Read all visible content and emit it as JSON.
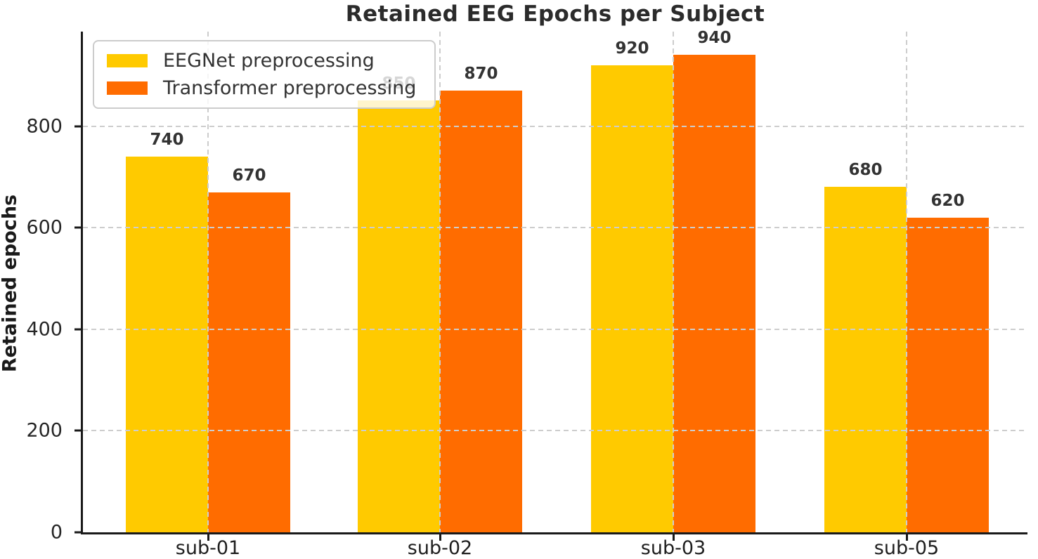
{
  "chart_data": {
    "type": "bar",
    "title": "Retained EEG Epochs per Subject",
    "xlabel": "",
    "ylabel": "Retained epochs",
    "categories": [
      "sub-01",
      "sub-02",
      "sub-03",
      "sub-05"
    ],
    "series": [
      {
        "name": "EEGNet preprocessing",
        "color": "#FFCA00",
        "values": [
          740,
          850,
          920,
          680
        ]
      },
      {
        "name": "Transformer preprocessing",
        "color": "#FF6C00",
        "values": [
          670,
          870,
          940,
          620
        ]
      }
    ],
    "bar_value_labels": [
      [
        740,
        850,
        920,
        680
      ],
      [
        670,
        870,
        940,
        620
      ]
    ],
    "yticks": [
      0,
      200,
      400,
      600,
      800
    ],
    "ylim": [
      0,
      986
    ],
    "grid": "dashed gray, horizontal and vertical, drawn above bars",
    "legend_position": "upper left",
    "colors": {
      "eegnet": "#FFCA00",
      "transformer": "#FF6C00",
      "grid": "#cdcdcd",
      "axis": "#1a1a1a",
      "title_text": "#2b2b2b",
      "label_text": "#333333"
    }
  }
}
